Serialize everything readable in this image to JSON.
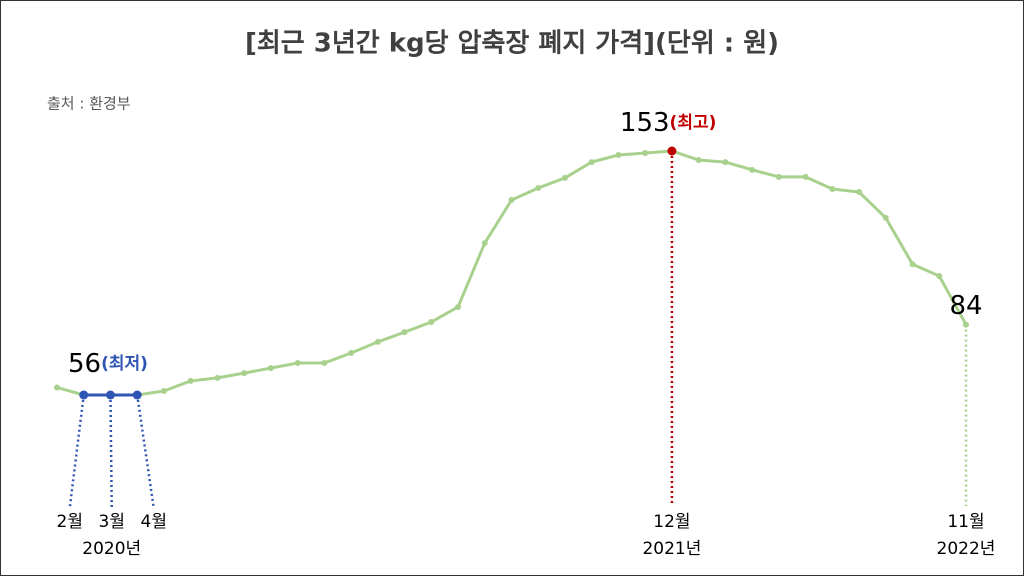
{
  "chart_data": {
    "type": "line",
    "title": "[최근 3년간 kg당 압축장 폐지 가격](단위 : 원)",
    "source": "출처 : 환경부",
    "categories": [
      null,
      "2월",
      "3월",
      "4월",
      null,
      null,
      null,
      null,
      null,
      null,
      null,
      null,
      null,
      null,
      null,
      null,
      null,
      null,
      null,
      null,
      null,
      null,
      null,
      "12월",
      null,
      null,
      null,
      null,
      null,
      null,
      null,
      null,
      null,
      null,
      "11월"
    ],
    "year_labels": [
      null,
      null,
      "2020년",
      null,
      null,
      null,
      null,
      null,
      null,
      null,
      null,
      null,
      null,
      null,
      null,
      null,
      null,
      null,
      null,
      null,
      null,
      null,
      null,
      "2021년",
      null,
      null,
      null,
      null,
      null,
      null,
      null,
      null,
      null,
      null,
      "2022년"
    ],
    "series": [
      {
        "color": "#a9d18e",
        "values": [
          59,
          56,
          56,
          56,
          57.6,
          61.6,
          62.8,
          64.7,
          66.7,
          68.7,
          68.7,
          72.7,
          77.1,
          81,
          85,
          91,
          116.4,
          133.5,
          138.3,
          142.3,
          148.6,
          151.4,
          152.2,
          153,
          149.4,
          148.6,
          145.5,
          142.7,
          142.7,
          137.9,
          136.7,
          126.4,
          108,
          103.3,
          84
        ]
      }
    ],
    "min_note": "(최저)",
    "max_note": "(최고)",
    "min_color": "#2f55b4",
    "max_color": "#c00000",
    "min_indices": [
      1,
      2,
      3
    ],
    "max_index": 23,
    "last_index": 34
  }
}
